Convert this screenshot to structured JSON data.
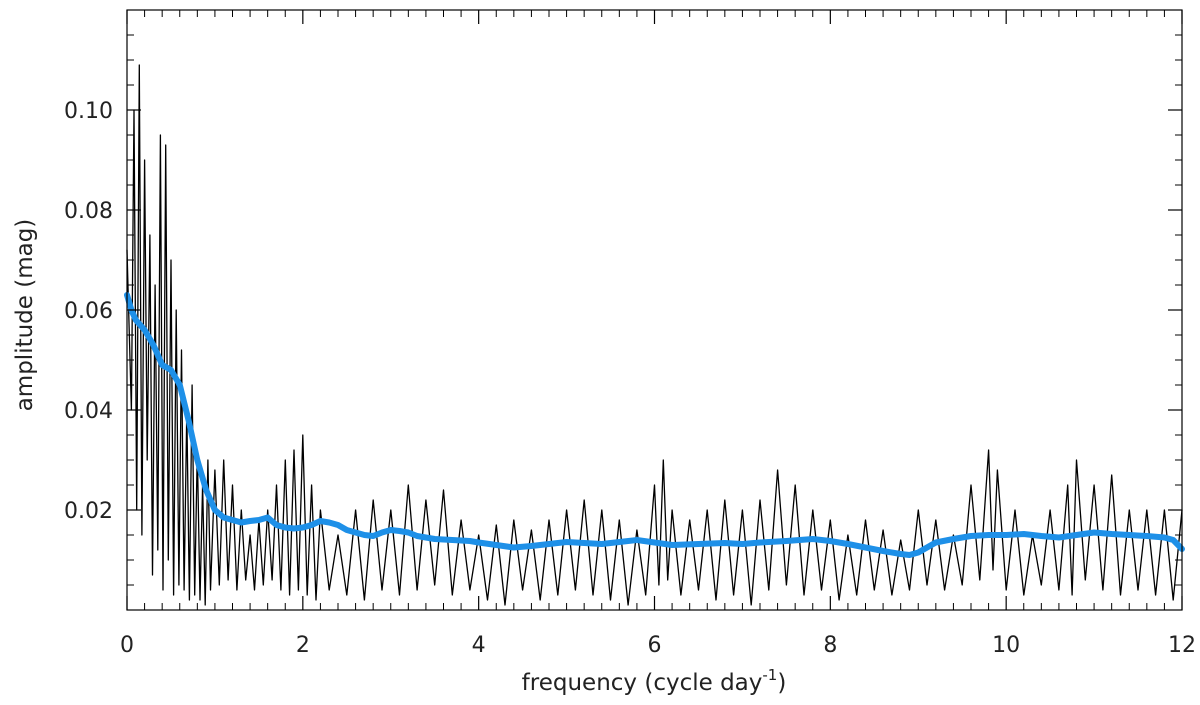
{
  "chart_data": {
    "type": "line",
    "title": "",
    "xlabel": "frequency (cycle day",
    "xlabel_superscript": "-1",
    "xlabel_suffix": ")",
    "ylabel": "amplitude (mag)",
    "xlim": [
      0,
      12
    ],
    "ylim": [
      0.0,
      0.12
    ],
    "xticks": [
      0,
      2,
      4,
      6,
      8,
      10,
      12
    ],
    "xtick_labels": [
      "0",
      "2",
      "4",
      "6",
      "8",
      "10",
      "12"
    ],
    "yticks": [
      0.02,
      0.04,
      0.06,
      0.08,
      0.1
    ],
    "ytick_labels": [
      "0.02",
      "0.04",
      "0.06",
      "0.08",
      "0.10"
    ],
    "grid": false,
    "legend": false,
    "series": [
      {
        "color": "#000000",
        "x": [
          0,
          0.05,
          0.08,
          0.11,
          0.14,
          0.17,
          0.2,
          0.23,
          0.26,
          0.29,
          0.32,
          0.35,
          0.38,
          0.41,
          0.44,
          0.47,
          0.5,
          0.53,
          0.56,
          0.59,
          0.62,
          0.65,
          0.68,
          0.71,
          0.74,
          0.77,
          0.8,
          0.83,
          0.86,
          0.89,
          0.92,
          0.95,
          1.0,
          1.05,
          1.1,
          1.15,
          1.2,
          1.25,
          1.3,
          1.35,
          1.4,
          1.45,
          1.5,
          1.55,
          1.6,
          1.65,
          1.7,
          1.75,
          1.8,
          1.85,
          1.9,
          1.95,
          2.0,
          2.05,
          2.1,
          2.15,
          2.2,
          2.3,
          2.4,
          2.5,
          2.6,
          2.7,
          2.8,
          2.9,
          3.0,
          3.1,
          3.2,
          3.3,
          3.4,
          3.5,
          3.6,
          3.7,
          3.8,
          3.9,
          4.0,
          4.1,
          4.2,
          4.3,
          4.4,
          4.5,
          4.6,
          4.7,
          4.8,
          4.9,
          5.0,
          5.1,
          5.2,
          5.3,
          5.4,
          5.5,
          5.6,
          5.7,
          5.8,
          5.9,
          6.0,
          6.05,
          6.1,
          6.15,
          6.2,
          6.3,
          6.4,
          6.5,
          6.6,
          6.7,
          6.8,
          6.9,
          7.0,
          7.1,
          7.2,
          7.3,
          7.4,
          7.5,
          7.6,
          7.7,
          7.8,
          7.9,
          8.0,
          8.1,
          8.2,
          8.3,
          8.4,
          8.5,
          8.6,
          8.7,
          8.8,
          8.9,
          9.0,
          9.1,
          9.2,
          9.3,
          9.4,
          9.5,
          9.6,
          9.7,
          9.8,
          9.85,
          9.9,
          10.0,
          10.1,
          10.2,
          10.3,
          10.4,
          10.5,
          10.6,
          10.7,
          10.75,
          10.8,
          10.9,
          11.0,
          11.1,
          11.2,
          11.3,
          11.4,
          11.5,
          11.6,
          11.7,
          11.8,
          11.9,
          12.0
        ],
        "values": [
          0.072,
          0.04,
          0.1,
          0.02,
          0.109,
          0.015,
          0.09,
          0.03,
          0.075,
          0.007,
          0.065,
          0.012,
          0.095,
          0.004,
          0.093,
          0.01,
          0.07,
          0.003,
          0.06,
          0.005,
          0.052,
          0.004,
          0.04,
          0.002,
          0.045,
          0.003,
          0.032,
          0.002,
          0.025,
          0.001,
          0.03,
          0.004,
          0.028,
          0.005,
          0.03,
          0.006,
          0.025,
          0.004,
          0.02,
          0.006,
          0.015,
          0.004,
          0.018,
          0.005,
          0.02,
          0.006,
          0.025,
          0.004,
          0.03,
          0.003,
          0.032,
          0.004,
          0.035,
          0.003,
          0.025,
          0.002,
          0.02,
          0.004,
          0.015,
          0.003,
          0.02,
          0.002,
          0.022,
          0.004,
          0.02,
          0.003,
          0.025,
          0.004,
          0.022,
          0.005,
          0.024,
          0.003,
          0.018,
          0.004,
          0.015,
          0.002,
          0.017,
          0.001,
          0.018,
          0.004,
          0.016,
          0.002,
          0.018,
          0.003,
          0.02,
          0.004,
          0.022,
          0.003,
          0.02,
          0.002,
          0.018,
          0.001,
          0.016,
          0.003,
          0.025,
          0.005,
          0.03,
          0.006,
          0.02,
          0.003,
          0.018,
          0.004,
          0.02,
          0.002,
          0.022,
          0.003,
          0.02,
          0.001,
          0.022,
          0.004,
          0.028,
          0.005,
          0.025,
          0.003,
          0.02,
          0.004,
          0.018,
          0.002,
          0.015,
          0.003,
          0.018,
          0.004,
          0.016,
          0.003,
          0.014,
          0.004,
          0.02,
          0.005,
          0.018,
          0.004,
          0.015,
          0.005,
          0.025,
          0.006,
          0.032,
          0.008,
          0.028,
          0.004,
          0.02,
          0.003,
          0.015,
          0.005,
          0.02,
          0.004,
          0.025,
          0.003,
          0.03,
          0.006,
          0.025,
          0.004,
          0.027,
          0.003,
          0.02,
          0.004,
          0.02,
          0.003,
          0.02,
          0.002,
          0.02
        ]
      },
      {
        "color": "#1e90e8",
        "x": [
          0,
          0.05,
          0.1,
          0.2,
          0.3,
          0.4,
          0.5,
          0.6,
          0.7,
          0.8,
          0.9,
          1.0,
          1.1,
          1.2,
          1.3,
          1.4,
          1.5,
          1.6,
          1.7,
          1.8,
          1.9,
          2.0,
          2.1,
          2.2,
          2.3,
          2.4,
          2.5,
          2.6,
          2.7,
          2.8,
          2.9,
          3.0,
          3.1,
          3.2,
          3.3,
          3.5,
          3.7,
          3.9,
          4.0,
          4.2,
          4.4,
          4.6,
          4.8,
          5.0,
          5.2,
          5.4,
          5.6,
          5.8,
          6.0,
          6.2,
          6.5,
          6.8,
          7.0,
          7.2,
          7.5,
          7.8,
          8.0,
          8.2,
          8.4,
          8.6,
          8.8,
          8.9,
          9.0,
          9.1,
          9.2,
          9.4,
          9.6,
          9.8,
          10.0,
          10.2,
          10.4,
          10.6,
          10.8,
          11.0,
          11.2,
          11.4,
          11.6,
          11.8,
          11.9,
          12.0
        ],
        "values": [
          0.063,
          0.06,
          0.058,
          0.056,
          0.053,
          0.049,
          0.048,
          0.045,
          0.038,
          0.03,
          0.024,
          0.02,
          0.0185,
          0.018,
          0.0175,
          0.0178,
          0.018,
          0.0185,
          0.017,
          0.0165,
          0.0163,
          0.0165,
          0.017,
          0.0178,
          0.0175,
          0.017,
          0.016,
          0.0155,
          0.015,
          0.0148,
          0.0155,
          0.016,
          0.0158,
          0.0155,
          0.0148,
          0.0142,
          0.014,
          0.0138,
          0.0135,
          0.013,
          0.0125,
          0.0128,
          0.0132,
          0.0136,
          0.0134,
          0.0132,
          0.0136,
          0.014,
          0.0135,
          0.013,
          0.0132,
          0.0134,
          0.0132,
          0.0135,
          0.0138,
          0.0142,
          0.0138,
          0.0132,
          0.0125,
          0.0118,
          0.0112,
          0.011,
          0.0115,
          0.0125,
          0.0135,
          0.0142,
          0.0148,
          0.015,
          0.015,
          0.0152,
          0.0148,
          0.0145,
          0.015,
          0.0155,
          0.0152,
          0.015,
          0.0148,
          0.0145,
          0.014,
          0.0122
        ]
      }
    ]
  }
}
